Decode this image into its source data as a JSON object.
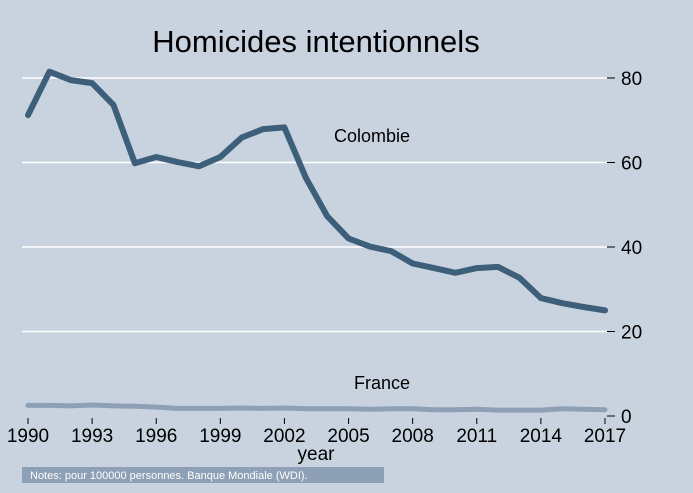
{
  "chart_data": {
    "type": "line",
    "title": "Homicides intentionnels",
    "xlabel": "year",
    "ylabel": "",
    "xlim": [
      1990,
      2017
    ],
    "ylim": [
      0,
      80
    ],
    "x_ticks": [
      1990,
      1993,
      1996,
      1999,
      2002,
      2005,
      2008,
      2011,
      2014,
      2017
    ],
    "y_ticks": [
      0,
      20,
      40,
      60,
      80
    ],
    "y_axis_side": "right",
    "grid": true,
    "x": [
      1990,
      1991,
      1992,
      1993,
      1994,
      1995,
      1996,
      1997,
      1998,
      1999,
      2000,
      2001,
      2002,
      2003,
      2004,
      2005,
      2006,
      2007,
      2008,
      2009,
      2010,
      2011,
      2012,
      2013,
      2014,
      2015,
      2016,
      2017
    ],
    "series": [
      {
        "name": "Colombie",
        "color": "#3e5f7a",
        "values": [
          71.2,
          81.5,
          79.5,
          78.8,
          73.6,
          59.8,
          61.3,
          60.1,
          59.1,
          61.3,
          65.9,
          67.9,
          68.3,
          56.4,
          47.3,
          42.0,
          40.1,
          39.0,
          36.1,
          35.0,
          33.9,
          35.0,
          35.3,
          32.7,
          27.9,
          26.7,
          25.8,
          25.0
        ]
      },
      {
        "name": "France",
        "color": "#8da0b5",
        "values": [
          2.5,
          2.5,
          2.4,
          2.6,
          2.4,
          2.3,
          2.1,
          1.8,
          1.8,
          1.8,
          1.9,
          1.8,
          1.9,
          1.7,
          1.7,
          1.7,
          1.6,
          1.7,
          1.7,
          1.5,
          1.5,
          1.6,
          1.4,
          1.4,
          1.4,
          1.7,
          1.6,
          1.5
        ]
      }
    ],
    "note": "Notes: pour 100000 personnes. Banque Mondiale (WDI)."
  }
}
